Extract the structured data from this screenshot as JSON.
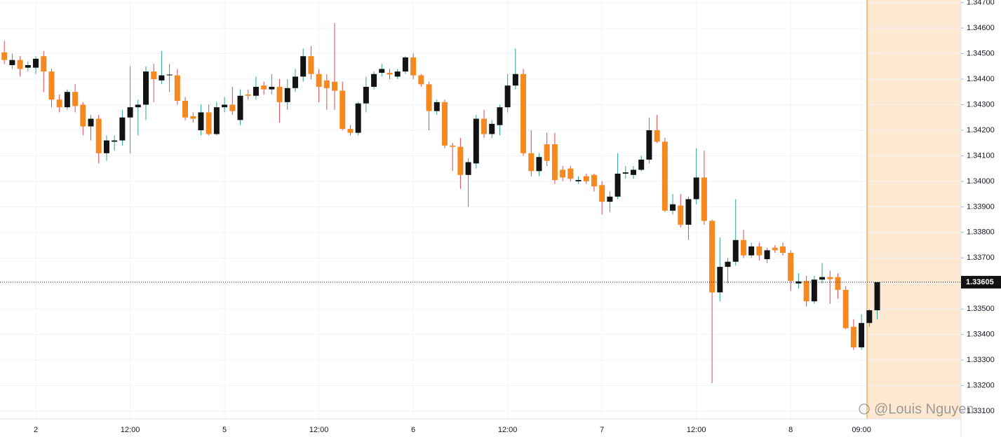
{
  "chart_data": {
    "type": "candlestick",
    "categories": [
      null,
      null,
      null,
      null,
      "2",
      null,
      null,
      null,
      null,
      null,
      null,
      null,
      null,
      null,
      null,
      null,
      "12:00",
      null,
      null,
      null,
      null,
      null,
      null,
      null,
      null,
      null,
      null,
      null,
      "5",
      null,
      null,
      null,
      null,
      null,
      null,
      null,
      null,
      null,
      null,
      null,
      "12:00",
      null,
      null,
      null,
      null,
      null,
      null,
      null,
      null,
      null,
      null,
      null,
      "6",
      null,
      null,
      null,
      null,
      null,
      null,
      null,
      null,
      null,
      null,
      null,
      "12:00",
      null,
      null,
      null,
      null,
      null,
      null,
      null,
      null,
      null,
      null,
      null,
      "7",
      null,
      null,
      null,
      null,
      null,
      null,
      null,
      null,
      null,
      null,
      null,
      "12:00",
      null,
      null,
      null,
      null,
      null,
      null,
      null,
      null,
      null,
      null,
      null,
      "8",
      null,
      null,
      null,
      null,
      null,
      null,
      null,
      null,
      "09:00",
      null,
      null
    ],
    "candles": [
      [
        1.34505,
        1.3455,
        1.3446,
        1.34475
      ],
      [
        1.34455,
        1.345,
        1.3444,
        1.34475
      ],
      [
        1.34475,
        1.3449,
        1.3441,
        1.3444
      ],
      [
        1.34445,
        1.3447,
        1.3443,
        1.34455
      ],
      [
        1.34445,
        1.3449,
        1.3442,
        1.3448
      ],
      [
        1.3449,
        1.3451,
        1.3435,
        1.3443
      ],
      [
        1.3443,
        1.3444,
        1.3429,
        1.3432
      ],
      [
        1.3432,
        1.3434,
        1.3427,
        1.3429
      ],
      [
        1.3429,
        1.3436,
        1.3428,
        1.3435
      ],
      [
        1.3435,
        1.3438,
        1.3427,
        1.34295
      ],
      [
        1.343,
        1.3431,
        1.3418,
        1.34215
      ],
      [
        1.34215,
        1.3426,
        1.3416,
        1.34245
      ],
      [
        1.34245,
        1.3426,
        1.3407,
        1.3411
      ],
      [
        1.3411,
        1.3418,
        1.3408,
        1.3416
      ],
      [
        1.34155,
        1.3418,
        1.3412,
        1.3416
      ],
      [
        1.3416,
        1.3428,
        1.3414,
        1.3425
      ],
      [
        1.3425,
        1.3445,
        1.3411,
        1.3429
      ],
      [
        1.3429,
        1.3432,
        1.3418,
        1.343
      ],
      [
        1.343,
        1.3445,
        1.3424,
        1.3443
      ],
      [
        1.3443,
        1.3446,
        1.3431,
        1.344
      ],
      [
        1.34395,
        1.3451,
        1.3438,
        1.34415
      ],
      [
        1.34415,
        1.3446,
        1.3435,
        1.34418
      ],
      [
        1.34415,
        1.3444,
        1.343,
        1.34315
      ],
      [
        1.34315,
        1.3433,
        1.3424,
        1.3425
      ],
      [
        1.34255,
        1.3427,
        1.3423,
        1.34245
      ],
      [
        1.342,
        1.343,
        1.3418,
        1.3427
      ],
      [
        1.3427,
        1.343,
        1.3418,
        1.34185
      ],
      [
        1.34185,
        1.3431,
        1.3418,
        1.3429
      ],
      [
        1.3429,
        1.3433,
        1.3427,
        1.343
      ],
      [
        1.343,
        1.3437,
        1.3426,
        1.34275
      ],
      [
        1.3424,
        1.3436,
        1.3422,
        1.34335
      ],
      [
        1.3434,
        1.3436,
        1.3432,
        1.34335
      ],
      [
        1.34335,
        1.3441,
        1.3432,
        1.3437
      ],
      [
        1.34375,
        1.3439,
        1.3434,
        1.3436
      ],
      [
        1.3436,
        1.3442,
        1.3434,
        1.3437
      ],
      [
        1.3437,
        1.344,
        1.3423,
        1.3431
      ],
      [
        1.3431,
        1.344,
        1.3428,
        1.34365
      ],
      [
        1.34365,
        1.3444,
        1.3435,
        1.3441
      ],
      [
        1.3441,
        1.3452,
        1.3439,
        1.3449
      ],
      [
        1.3449,
        1.3453,
        1.344,
        1.3442
      ],
      [
        1.3442,
        1.3444,
        1.3431,
        1.3437
      ],
      [
        1.34395,
        1.3442,
        1.3428,
        1.34365
      ],
      [
        1.3439,
        1.3462,
        1.3428,
        1.34355
      ],
      [
        1.34355,
        1.3439,
        1.342,
        1.34205
      ],
      [
        1.34205,
        1.3422,
        1.3418,
        1.3419
      ],
      [
        1.3419,
        1.3431,
        1.3418,
        1.34305
      ],
      [
        1.34305,
        1.3441,
        1.3427,
        1.3437
      ],
      [
        1.3437,
        1.3443,
        1.3436,
        1.3442
      ],
      [
        1.34425,
        1.3446,
        1.3441,
        1.3444
      ],
      [
        1.34425,
        1.3444,
        1.344,
        1.34418
      ],
      [
        1.3441,
        1.3444,
        1.344,
        1.3443
      ],
      [
        1.3443,
        1.3449,
        1.3442,
        1.34485
      ],
      [
        1.34485,
        1.345,
        1.344,
        1.34415
      ],
      [
        1.34415,
        1.3442,
        1.3437,
        1.3438
      ],
      [
        1.3438,
        1.3439,
        1.342,
        1.34275
      ],
      [
        1.34275,
        1.3432,
        1.3426,
        1.3431
      ],
      [
        1.3431,
        1.3432,
        1.3413,
        1.3414
      ],
      [
        1.3414,
        1.3415,
        1.3404,
        1.34135
      ],
      [
        1.34135,
        1.3417,
        1.3397,
        1.34025
      ],
      [
        1.34025,
        1.3409,
        1.339,
        1.34075
      ],
      [
        1.3407,
        1.3426,
        1.3405,
        1.34245
      ],
      [
        1.34245,
        1.3428,
        1.3417,
        1.34185
      ],
      [
        1.34185,
        1.3424,
        1.3417,
        1.34225
      ],
      [
        1.3422,
        1.343,
        1.3418,
        1.3429
      ],
      [
        1.3429,
        1.3442,
        1.3427,
        1.34375
      ],
      [
        1.34375,
        1.3452,
        1.3436,
        1.3442
      ],
      [
        1.3442,
        1.3444,
        1.341,
        1.3411
      ],
      [
        1.3411,
        1.342,
        1.3402,
        1.3404
      ],
      [
        1.3404,
        1.3411,
        1.3402,
        1.34095
      ],
      [
        1.34145,
        1.3419,
        1.3406,
        1.3408
      ],
      [
        1.34145,
        1.3419,
        1.3399,
        1.34005
      ],
      [
        1.34045,
        1.3406,
        1.34,
        1.34015
      ],
      [
        1.3405,
        1.3406,
        1.34,
        1.3401
      ],
      [
        1.34,
        1.3402,
        1.3399,
        1.34005
      ],
      [
        1.3402,
        1.3403,
        1.3399,
        1.34
      ],
      [
        1.34025,
        1.3403,
        1.3396,
        1.3398
      ],
      [
        1.33985,
        1.34,
        1.3387,
        1.3392
      ],
      [
        1.3392,
        1.3396,
        1.3388,
        1.3394
      ],
      [
        1.3394,
        1.3411,
        1.3393,
        1.3403
      ],
      [
        1.3403,
        1.3406,
        1.3401,
        1.34035
      ],
      [
        1.34025,
        1.3406,
        1.3401,
        1.34045
      ],
      [
        1.34045,
        1.341,
        1.3404,
        1.34085
      ],
      [
        1.34085,
        1.3425,
        1.3407,
        1.342
      ],
      [
        1.342,
        1.3426,
        1.3415,
        1.34155
      ],
      [
        1.34155,
        1.3417,
        1.3388,
        1.33885
      ],
      [
        1.33885,
        1.3395,
        1.3387,
        1.3391
      ],
      [
        1.33905,
        1.3395,
        1.3382,
        1.3383
      ],
      [
        1.3383,
        1.3394,
        1.3377,
        1.3393
      ],
      [
        1.3393,
        1.3413,
        1.3391,
        1.34015
      ],
      [
        1.34015,
        1.3412,
        1.3383,
        1.33845
      ],
      [
        1.33845,
        1.3385,
        1.3321,
        1.33565
      ],
      [
        1.33565,
        1.3378,
        1.3353,
        1.33665
      ],
      [
        1.33665,
        1.337,
        1.336,
        1.33685
      ],
      [
        1.33685,
        1.3393,
        1.3367,
        1.3377
      ],
      [
        1.3377,
        1.3381,
        1.337,
        1.3371
      ],
      [
        1.3371,
        1.3376,
        1.337,
        1.33745
      ],
      [
        1.33745,
        1.3376,
        1.3369,
        1.3371
      ],
      [
        1.33695,
        1.3374,
        1.3368,
        1.3373
      ],
      [
        1.3374,
        1.3375,
        1.3372,
        1.3373
      ],
      [
        1.33745,
        1.3376,
        1.3371,
        1.3372
      ],
      [
        1.3372,
        1.3373,
        1.3357,
        1.3361
      ],
      [
        1.336,
        1.3364,
        1.3358,
        1.33608
      ],
      [
        1.3361,
        1.3363,
        1.3351,
        1.3353
      ],
      [
        1.3353,
        1.3363,
        1.3352,
        1.33615
      ],
      [
        1.33615,
        1.3368,
        1.336,
        1.33625
      ],
      [
        1.33625,
        1.3365,
        1.3352,
        1.33617
      ],
      [
        1.33625,
        1.3364,
        1.3354,
        1.33575
      ],
      [
        1.33575,
        1.3359,
        1.3342,
        1.33425
      ],
      [
        1.3343,
        1.3346,
        1.3334,
        1.3335
      ],
      [
        1.3335,
        1.3348,
        1.3334,
        1.33445
      ],
      [
        1.33445,
        1.335,
        1.3343,
        1.33495
      ],
      [
        1.33495,
        1.33605,
        1.3346,
        1.33605
      ]
    ],
    "up_color": "#131313",
    "down_color": "#f5891f",
    "wick_up_color": "#26a69a",
    "wick_down_color": "#e0464f",
    "ylim": [
      1.3307,
      1.3471
    ],
    "yticks": [
      {
        "value": 1.347,
        "label": "1.34700"
      },
      {
        "value": 1.346,
        "label": "1.34600"
      },
      {
        "value": 1.345,
        "label": "1.34500"
      },
      {
        "value": 1.344,
        "label": "1.34400"
      },
      {
        "value": 1.343,
        "label": "1.34300"
      },
      {
        "value": 1.342,
        "label": "1.34200"
      },
      {
        "value": 1.341,
        "label": "1.34100"
      },
      {
        "value": 1.34,
        "label": "1.34000"
      },
      {
        "value": 1.339,
        "label": "1.33900"
      },
      {
        "value": 1.338,
        "label": "1.33800"
      },
      {
        "value": 1.337,
        "label": "1.33700"
      },
      {
        "value": 1.336,
        "label": "1.33600"
      },
      {
        "value": 1.335,
        "label": "1.33500"
      },
      {
        "value": 1.334,
        "label": "1.33400"
      },
      {
        "value": 1.333,
        "label": "1.33300"
      },
      {
        "value": 1.332,
        "label": "1.33200"
      },
      {
        "value": 1.331,
        "label": "1.33100"
      }
    ],
    "last_price": {
      "value": 1.33605,
      "label": "1.33605"
    },
    "grid": true,
    "watermark": "@Louis Nguyen"
  }
}
